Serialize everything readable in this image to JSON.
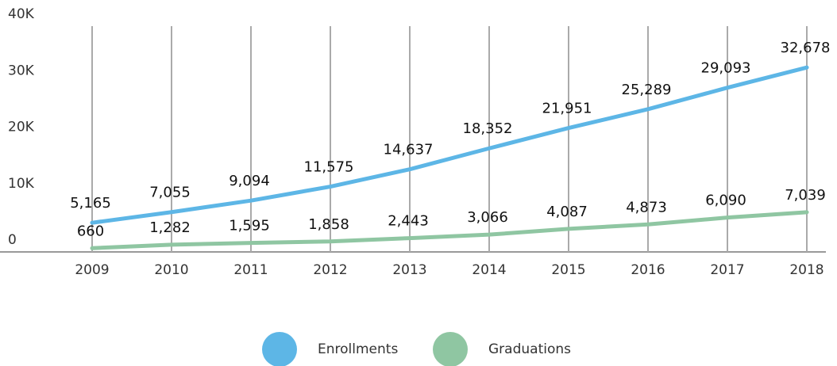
{
  "chart_data": {
    "type": "line",
    "categories": [
      "2009",
      "2010",
      "2011",
      "2012",
      "2013",
      "2014",
      "2015",
      "2016",
      "2017",
      "2018"
    ],
    "series": [
      {
        "name": "Enrollments",
        "color": "#5db6e6",
        "values": [
          5165,
          7055,
          9094,
          11575,
          14637,
          18352,
          21951,
          25289,
          29093,
          32678
        ],
        "value_labels": [
          "5,165",
          "7,055",
          "9,094",
          "11,575",
          "14,637",
          "18,352",
          "21,951",
          "25,289",
          "29,093",
          "32,678"
        ]
      },
      {
        "name": "Graduations",
        "color": "#8fc6a2",
        "values": [
          660,
          1282,
          1595,
          1858,
          2443,
          3066,
          4087,
          4873,
          6090,
          7039
        ],
        "value_labels": [
          "660",
          "1,282",
          "1,595",
          "1,858",
          "2,443",
          "3,066",
          "4,087",
          "4,873",
          "6,090",
          "7,039"
        ]
      }
    ],
    "ylim": [
      0,
      40000
    ],
    "yticks": [
      0,
      {
        "value": 10000,
        "label": "10K"
      },
      {
        "value": 20000,
        "label": "20K"
      },
      {
        "value": 30000,
        "label": "30K"
      },
      {
        "value": 40000,
        "label": "40K"
      }
    ],
    "grid": true,
    "legend": "bottom"
  }
}
